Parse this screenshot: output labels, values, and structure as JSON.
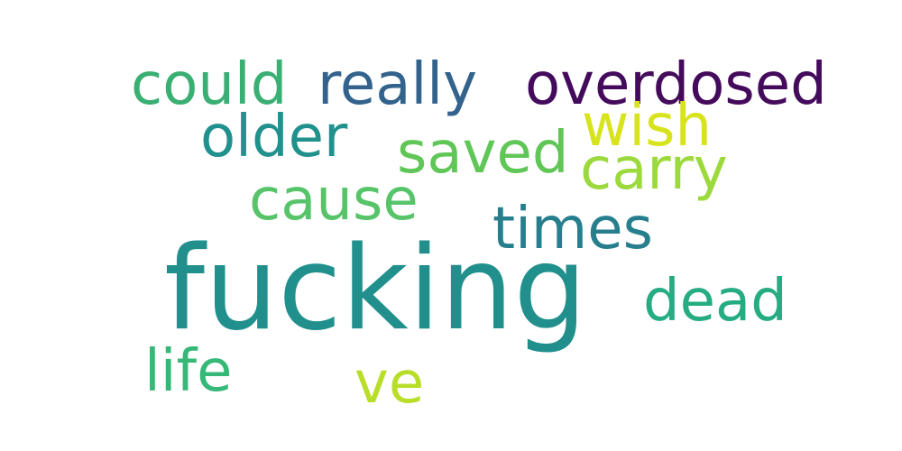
{
  "words": [
    {
      "id": "could",
      "text": "could",
      "color": "#3aaf74"
    },
    {
      "id": "really",
      "text": "really",
      "color": "#33638d"
    },
    {
      "id": "overdosed",
      "text": "overdosed",
      "color": "#440a5c"
    },
    {
      "id": "older",
      "text": "older",
      "color": "#20918c"
    },
    {
      "id": "wish",
      "text": "wish",
      "color": "#d7e31c"
    },
    {
      "id": "saved",
      "text": "saved",
      "color": "#60c657"
    },
    {
      "id": "carry",
      "text": "carry",
      "color": "#9bd93c"
    },
    {
      "id": "cause",
      "text": "cause",
      "color": "#57c46a"
    },
    {
      "id": "times",
      "text": "times",
      "color": "#277f8e"
    },
    {
      "id": "fucking",
      "text": "fucking",
      "color": "#21908d"
    },
    {
      "id": "dead",
      "text": "dead",
      "color": "#26ac82"
    },
    {
      "id": "life",
      "text": "life",
      "color": "#36b878"
    },
    {
      "id": "ve",
      "text": "ve",
      "color": "#b8de2a"
    }
  ]
}
